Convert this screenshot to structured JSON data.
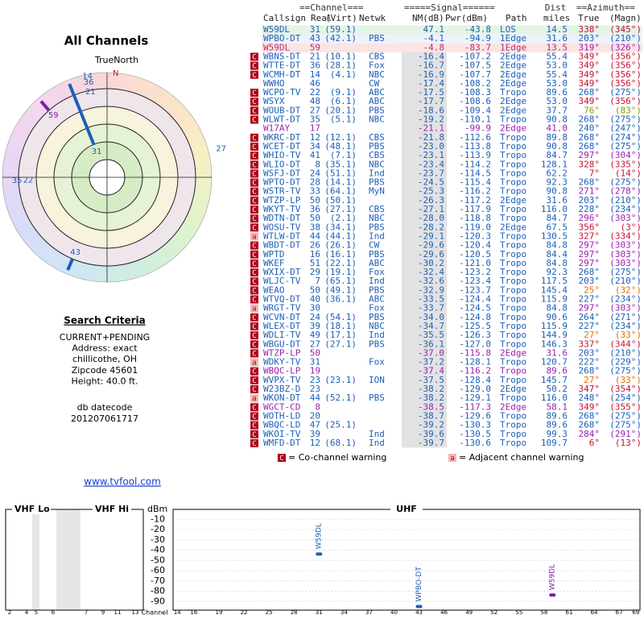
{
  "left": {
    "title": "All Channels",
    "true_north": "TrueNorth",
    "north": "N",
    "search_title": "Search Criteria",
    "criteria": [
      "CURRENT+PENDING",
      "Address: exact",
      "chillicothe, OH",
      "Zipcode 45601",
      "Height: 40.0 ft."
    ],
    "datecode_label": "db datecode",
    "datecode": "201207061717",
    "link": "www.tvfool.com"
  },
  "polar": {
    "markers": [
      {
        "label": "31",
        "azimuth": 338,
        "nm": 47.1,
        "color": "#1d5fb8"
      },
      {
        "label": "59",
        "azimuth": 319,
        "nm": -4.8,
        "color": "#7a1fa8"
      },
      {
        "label": "43",
        "azimuth": 203,
        "nm": -4.1,
        "color": "#1d5fb8"
      }
    ],
    "labels": [
      {
        "label": "14",
        "azimuth": 349
      },
      {
        "label": "36",
        "azimuth": 349
      },
      {
        "label": "21",
        "azimuth": 349
      },
      {
        "label": "27",
        "azimuth": 76
      },
      {
        "label": "35",
        "azimuth": 268
      },
      {
        "label": "22",
        "azimuth": 268
      }
    ]
  },
  "table": {
    "header_top": [
      "==Channel===",
      "=====Signal======",
      "Dist",
      "==Azimuth=="
    ],
    "header": [
      "Callsign",
      "Real",
      "(Virt)",
      "Netwk",
      "NM(dB)",
      "Pwr(dBm)",
      "Path",
      "miles",
      "True",
      "(Magn)"
    ],
    "rows": [
      [
        null,
        "W59DL",
        "31",
        "(59.1)",
        null,
        "47.1",
        "-43.8",
        "LOS",
        "14.5",
        "338°",
        "(345°)"
      ],
      [
        null,
        "WPBO-DT",
        "43",
        "(42.1)",
        "PBS",
        "-4.1",
        "-94.9",
        "1Edge",
        "31.6",
        "203°",
        "(210°)"
      ],
      [
        null,
        "W59DL",
        "59",
        null,
        null,
        "-4.8",
        "-83.7",
        "1Edge",
        "13.5",
        "319°",
        "(326°)"
      ],
      [
        "C",
        "WBNS-DT",
        "21",
        "(10.1)",
        "CBS",
        "-16.4",
        "-107.2",
        "2Edge",
        "55.4",
        "349°",
        "(356°)"
      ],
      [
        "C",
        "WTTE-DT",
        "36",
        "(28.1)",
        "Fox",
        "-16.7",
        "-107.5",
        "2Edge",
        "53.0",
        "349°",
        "(356°)"
      ],
      [
        "C",
        "WCMH-DT",
        "14",
        "(4.1)",
        "NBC",
        "-16.9",
        "-107.7",
        "2Edge",
        "55.4",
        "349°",
        "(356°)"
      ],
      [
        null,
        "WWHO",
        "46",
        null,
        "CW",
        "-17.4",
        "-108.2",
        "2Edge",
        "53.0",
        "349°",
        "(356°)"
      ],
      [
        "C",
        "WCPO-TV",
        "22",
        "(9.1)",
        "ABC",
        "-17.5",
        "-108.3",
        "Tropo",
        "89.6",
        "268°",
        "(275°)"
      ],
      [
        "C",
        "WSYX",
        "48",
        "(6.1)",
        "ABC",
        "-17.7",
        "-108.6",
        "2Edge",
        "53.0",
        "349°",
        "(356°)"
      ],
      [
        "C",
        "WOUB-DT",
        "27",
        "(20.1)",
        "PBS",
        "-18.6",
        "-109.4",
        "2Edge",
        "37.7",
        "76°",
        "(83°)"
      ],
      [
        "C",
        "WLWT-DT",
        "35",
        "(5.1)",
        "NBC",
        "-19.2",
        "-110.1",
        "Tropo",
        "90.8",
        "268°",
        "(275°)"
      ],
      [
        null,
        "W17AY",
        "17",
        null,
        null,
        "-21.1",
        "-99.9",
        "2Edge",
        "41.0",
        "240°",
        "(247°)"
      ],
      [
        "C",
        "WKRC-DT",
        "12",
        "(12.1)",
        "CBS",
        "-21.8",
        "-112.6",
        "Tropo",
        "89.8",
        "268°",
        "(274°)"
      ],
      [
        "C",
        "WCET-DT",
        "34",
        "(48.1)",
        "PBS",
        "-23.0",
        "-113.8",
        "Tropo",
        "90.8",
        "268°",
        "(275°)"
      ],
      [
        "C",
        "WHIO-TV",
        "41",
        "(7.1)",
        "CBS",
        "-23.1",
        "-113.9",
        "Tropo",
        "84.7",
        "297°",
        "(304°)"
      ],
      [
        "C",
        "WLIO-DT",
        "8",
        "(35.1)",
        "NBC",
        "-23.4",
        "-114.2",
        "Tropo",
        "128.1",
        "328°",
        "(335°)"
      ],
      [
        "C",
        "WSFJ-DT",
        "24",
        "(51.1)",
        "Ind",
        "-23.7",
        "-114.5",
        "Tropo",
        "62.2",
        "7°",
        "(14°)"
      ],
      [
        "C",
        "WPTO-DT",
        "28",
        "(14.1)",
        "PBS",
        "-24.5",
        "-115.4",
        "Tropo",
        "92.3",
        "268°",
        "(275°)"
      ],
      [
        "C",
        "WSTR-TV",
        "33",
        "(64.1)",
        "MyN",
        "-25.3",
        "-116.2",
        "Tropo",
        "90.8",
        "271°",
        "(278°)"
      ],
      [
        "C",
        "WTZP-LP",
        "50",
        "(50.1)",
        null,
        "-26.3",
        "-117.2",
        "2Edge",
        "31.6",
        "203°",
        "(210°)"
      ],
      [
        "C",
        "WKYT-TV",
        "36",
        "(27.1)",
        "CBS",
        "-27.1",
        "-117.9",
        "Tropo",
        "116.0",
        "228°",
        "(234°)"
      ],
      [
        "C",
        "WDTN-DT",
        "50",
        "(2.1)",
        "NBC",
        "-28.0",
        "-118.8",
        "Tropo",
        "84.7",
        "296°",
        "(303°)"
      ],
      [
        "C",
        "WOSU-TV",
        "38",
        "(34.1)",
        "PBS",
        "-28.2",
        "-119.0",
        "2Edge",
        "67.5",
        "356°",
        "(3°)"
      ],
      [
        "a",
        "WTLW-DT",
        "44",
        "(44.1)",
        "Ind",
        "-29.1",
        "-120.3",
        "Tropo",
        "130.5",
        "327°",
        "(334°)"
      ],
      [
        "C",
        "WBDT-DT",
        "26",
        "(26.1)",
        "CW",
        "-29.6",
        "-120.4",
        "Tropo",
        "84.8",
        "297°",
        "(303°)"
      ],
      [
        "C",
        "WPTD",
        "16",
        "(16.1)",
        "PBS",
        "-29.6",
        "-120.5",
        "Tropo",
        "84.4",
        "297°",
        "(303°)"
      ],
      [
        "C",
        "WKEF",
        "51",
        "(22.1)",
        "ABC",
        "-30.2",
        "-121.0",
        "Tropo",
        "84.8",
        "297°",
        "(303°)"
      ],
      [
        "C",
        "WXIX-DT",
        "29",
        "(19.1)",
        "Fox",
        "-32.4",
        "-123.2",
        "Tropo",
        "92.3",
        "268°",
        "(275°)"
      ],
      [
        "C",
        "WLJC-TV",
        "7",
        "(65.1)",
        "Ind",
        "-32.6",
        "-123.4",
        "Tropo",
        "117.5",
        "203°",
        "(210°)"
      ],
      [
        "C",
        "WEAO",
        "50",
        "(49.1)",
        "PBS",
        "-32.9",
        "-123.7",
        "Tropo",
        "145.4",
        "25°",
        "(32°)"
      ],
      [
        "C",
        "WTVQ-DT",
        "40",
        "(36.1)",
        "ABC",
        "-33.5",
        "-124.4",
        "Tropo",
        "115.9",
        "227°",
        "(234°)"
      ],
      [
        "a",
        "WRGT-TV",
        "30",
        null,
        "Fox",
        "-33.7",
        "-124.5",
        "Tropo",
        "84.8",
        "297°",
        "(303°)"
      ],
      [
        "C",
        "WCVN-DT",
        "24",
        "(54.1)",
        "PBS",
        "-34.0",
        "-124.8",
        "Tropo",
        "90.6",
        "264°",
        "(271°)"
      ],
      [
        "C",
        "WLEX-DT",
        "39",
        "(18.1)",
        "NBC",
        "-34.7",
        "-125.5",
        "Tropo",
        "115.9",
        "227°",
        "(234°)"
      ],
      [
        "C",
        "WDLI-TV",
        "49",
        "(17.1)",
        "Ind",
        "-35.5",
        "-126.3",
        "Tropo",
        "144.9",
        "27°",
        "(33°)"
      ],
      [
        "C",
        "WBGU-DT",
        "27",
        "(27.1)",
        "PBS",
        "-36.1",
        "-127.0",
        "Tropo",
        "146.3",
        "337°",
        "(344°)"
      ],
      [
        "C",
        "WTZP-LP",
        "50",
        null,
        null,
        "-37.0",
        "-115.8",
        "2Edge",
        "31.6",
        "203°",
        "(210°)"
      ],
      [
        "a",
        "WDKY-TV",
        "31",
        null,
        "Fox",
        "-37.2",
        "-128.1",
        "Tropo",
        "120.7",
        "222°",
        "(229°)"
      ],
      [
        "C",
        "WBQC-LP",
        "19",
        null,
        null,
        "-37.4",
        "-116.2",
        "Tropo",
        "89.6",
        "268°",
        "(275°)"
      ],
      [
        "C",
        "WVPX-TV",
        "23",
        "(23.1)",
        "ION",
        "-37.5",
        "-128.4",
        "Tropo",
        "145.7",
        "27°",
        "(33°)"
      ],
      [
        "C",
        "W23BZ-D",
        "23",
        null,
        null,
        "-38.2",
        "-129.0",
        "2Edge",
        "50.2",
        "347°",
        "(354°)"
      ],
      [
        "a",
        "WKON-DT",
        "44",
        "(52.1)",
        "PBS",
        "-38.2",
        "-129.1",
        "Tropo",
        "116.0",
        "248°",
        "(254°)"
      ],
      [
        "C",
        "WGCT-CD",
        "8",
        null,
        null,
        "-38.5",
        "-117.3",
        "2Edge",
        "58.1",
        "349°",
        "(355°)"
      ],
      [
        "C",
        "WOTH-LD",
        "20",
        null,
        null,
        "-38.7",
        "-129.6",
        "Tropo",
        "89.6",
        "268°",
        "(275°)"
      ],
      [
        "C",
        "WBQC-LD",
        "47",
        "(25.1)",
        null,
        "-39.2",
        "-130.3",
        "Tropo",
        "89.6",
        "268°",
        "(275°)"
      ],
      [
        "C",
        "WKOI-TV",
        "39",
        null,
        "Ind",
        "-39.6",
        "-130.5",
        "Tropo",
        "99.3",
        "284°",
        "(291°)"
      ],
      [
        "C",
        "WMFD-DT",
        "12",
        "(68.1)",
        "Ind",
        "-39.7",
        "-130.6",
        "Tropo",
        "109.7",
        "6°",
        "(13°)"
      ]
    ],
    "row_colors": [
      "#1d5fb8",
      "#1d5fb8",
      "#b5306a",
      "#1d5fb8",
      "#1d5fb8",
      "#1d5fb8",
      "#1d5fb8",
      "#1d5fb8",
      "#1d5fb8",
      "#1d5fb8",
      "#1d5fb8",
      "#9b1fb0",
      "#1d5fb8",
      "#1d5fb8",
      "#1d5fb8",
      "#1d5fb8",
      "#1d5fb8",
      "#1d5fb8",
      "#1d5fb8",
      "#1d5fb8",
      "#1d5fb8",
      "#1d5fb8",
      "#1d5fb8",
      "#1d5fb8",
      "#1d5fb8",
      "#1d5fb8",
      "#1d5fb8",
      "#1d5fb8",
      "#1d5fb8",
      "#1d5fb8",
      "#1d5fb8",
      "#1d5fb8",
      "#1d5fb8",
      "#1d5fb8",
      "#1d5fb8",
      "#1d5fb8",
      "#9b1fb0",
      "#1d5fb8",
      "#9b1fb0",
      "#1d5fb8",
      "#1d5fb8",
      "#1d5fb8",
      "#9b1fb0",
      "#1d5fb8",
      "#1d5fb8",
      "#1d5fb8",
      "#1d5fb8"
    ],
    "azimuth_colors": [
      "#c8102e",
      "#1d5fb8",
      "#9b1fb0",
      "#c8102e",
      "#c8102e",
      "#c8102e",
      "#c8102e",
      "#1d5fb8",
      "#c8102e",
      "#8a9a00",
      "#1d5fb8",
      "#1d5fb8",
      "#1d5fb8",
      "#1d5fb8",
      "#9b1fb0",
      "#c8102e",
      "#c8102e",
      "#1d5fb8",
      "#9b1fb0",
      "#1d5fb8",
      "#1d5fb8",
      "#9b1fb0",
      "#c8102e",
      "#c8102e",
      "#9b1fb0",
      "#9b1fb0",
      "#9b1fb0",
      "#1d5fb8",
      "#1d5fb8",
      "#e07000",
      "#1d5fb8",
      "#9b1fb0",
      "#1d5fb8",
      "#1d5fb8",
      "#e07000",
      "#c8102e",
      "#1d5fb8",
      "#1d5fb8",
      "#1d5fb8",
      "#e07000",
      "#c8102e",
      "#1d5fb8",
      "#c8102e",
      "#1d5fb8",
      "#1d5fb8",
      "#9b1fb0",
      "#c8102e"
    ],
    "row_backgrounds": [
      "#e3f5e3",
      "#eef2fb",
      "#fbe4e4"
    ],
    "legend": [
      [
        "C",
        "= Co-channel warning"
      ],
      [
        "a",
        "= Adjacent channel warning"
      ]
    ]
  },
  "spectrum": {
    "vhf_lo": "VHF Lo",
    "vhf_hi": "VHF Hi",
    "uhf": "UHF",
    "unit": "dBm",
    "channel_label": "Channel",
    "ylim": [
      -100,
      0
    ],
    "yticks": [
      -10,
      -20,
      -30,
      -40,
      -50,
      -60,
      -70,
      -80,
      -90
    ],
    "grid": true,
    "vhf_ticks": [
      2,
      4,
      5,
      6,
      7,
      9,
      11,
      13
    ],
    "uhf_xlim": [
      13.5,
      69.5
    ],
    "uhf_ticks": [
      14,
      16,
      19,
      22,
      25,
      28,
      31,
      34,
      37,
      40,
      43,
      46,
      49,
      52,
      55,
      58,
      61,
      64,
      67,
      69
    ],
    "markers": [
      {
        "name": "W59DL",
        "channel": 31,
        "dbm": -43.8,
        "color": "#1d5fb8"
      },
      {
        "name": "WPBO-DT",
        "channel": 43,
        "dbm": -94.9,
        "color": "#1d5fb8"
      },
      {
        "name": "W59DL",
        "channel": 59,
        "dbm": -83.7,
        "color": "#7a1fa8"
      }
    ]
  }
}
